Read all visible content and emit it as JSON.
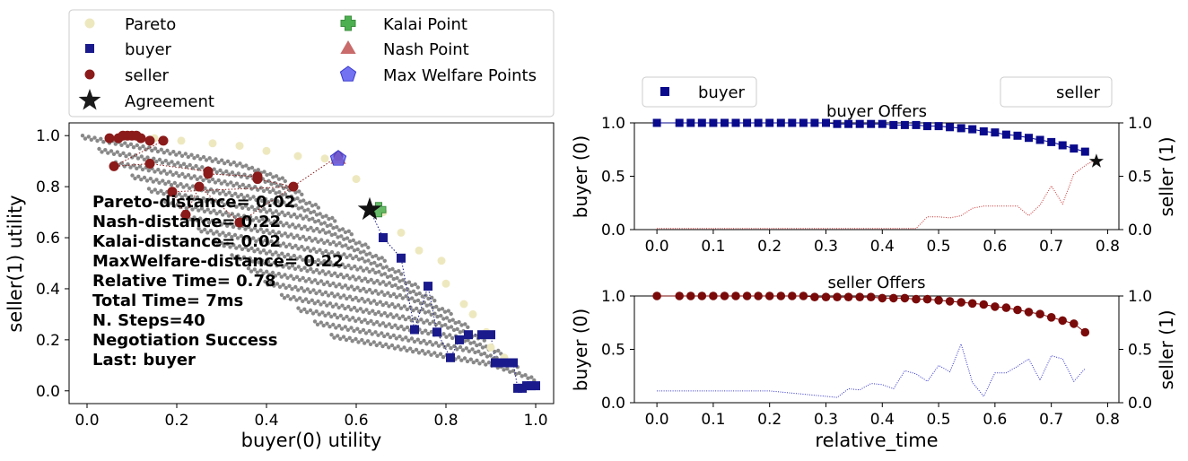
{
  "chart_data": [
    {
      "type": "scatter",
      "xlabel": "buyer(0) utility",
      "ylabel": "seller(1) utility",
      "xlim": [
        -0.04,
        1.04
      ],
      "ylim": [
        -0.05,
        1.05
      ],
      "xticks": [
        "0.0",
        "0.2",
        "0.4",
        "0.6",
        "0.8",
        "1.0"
      ],
      "yticks": [
        "0.0",
        "0.2",
        "0.4",
        "0.6",
        "0.8",
        "1.0"
      ],
      "legend_position": "above",
      "legend": [
        {
          "label": "Pareto",
          "marker": "circle",
          "color": "#eee8bf"
        },
        {
          "label": "buyer",
          "marker": "square",
          "color": "#1a1a8c"
        },
        {
          "label": "seller",
          "marker": "circle",
          "color": "#8b1a1a"
        },
        {
          "label": "Agreement",
          "marker": "star",
          "color": "#1a1a1a"
        },
        {
          "label": "Kalai Point",
          "marker": "plus",
          "color": "#4caf50"
        },
        {
          "label": "Nash Point",
          "marker": "triangle",
          "color": "#c96b6b"
        },
        {
          "label": "Max Welfare Points",
          "marker": "pentagon",
          "color": "#5a5af0"
        }
      ],
      "stats": [
        "Pareto-distance= 0.02",
        "Nash-distance= 0.22",
        "Kalai-distance= 0.02",
        "MaxWelfare-distance= 0.22",
        "Relative Time= 0.78",
        "Total Time= 7ms",
        "N. Steps=40",
        "Negotiation Success",
        "Last: buyer"
      ],
      "series": [
        {
          "name": "buyer",
          "color": "#1a1a8c",
          "points": [
            [
              0.66,
              0.6
            ],
            [
              0.7,
              0.52
            ],
            [
              0.73,
              0.24
            ],
            [
              0.76,
              0.41
            ],
            [
              0.78,
              0.23
            ],
            [
              0.81,
              0.13
            ],
            [
              0.83,
              0.2
            ],
            [
              0.85,
              0.22
            ],
            [
              0.88,
              0.22
            ],
            [
              0.9,
              0.22
            ],
            [
              0.91,
              0.11
            ],
            [
              0.93,
              0.11
            ],
            [
              0.95,
              0.11
            ],
            [
              0.96,
              0.01
            ],
            [
              0.97,
              0.01
            ],
            [
              0.98,
              0.02
            ],
            [
              0.99,
              0.02
            ],
            [
              1.0,
              0.02
            ]
          ]
        },
        {
          "name": "seller",
          "color": "#8b1a1a",
          "points": [
            [
              0.05,
              0.99
            ],
            [
              0.07,
              0.99
            ],
            [
              0.08,
              1.0
            ],
            [
              0.09,
              1.0
            ],
            [
              0.1,
              1.0
            ],
            [
              0.11,
              1.0
            ],
            [
              0.12,
              0.99
            ],
            [
              0.14,
              0.98
            ],
            [
              0.17,
              0.98
            ],
            [
              0.06,
              0.88
            ],
            [
              0.14,
              0.89
            ],
            [
              0.27,
              0.86
            ],
            [
              0.27,
              0.85
            ],
            [
              0.38,
              0.84
            ],
            [
              0.38,
              0.83
            ],
            [
              0.46,
              0.8
            ],
            [
              0.19,
              0.78
            ],
            [
              0.22,
              0.69
            ],
            [
              0.25,
              0.8
            ],
            [
              0.34,
              0.66
            ],
            [
              0.56,
              0.92
            ]
          ]
        },
        {
          "name": "Pareto",
          "color": "#eee8bf",
          "points": [
            [
              0.15,
              0.99
            ],
            [
              0.21,
              0.98
            ],
            [
              0.28,
              0.97
            ],
            [
              0.34,
              0.96
            ],
            [
              0.4,
              0.94
            ],
            [
              0.47,
              0.92
            ],
            [
              0.53,
              0.91
            ],
            [
              0.6,
              0.83
            ],
            [
              0.66,
              0.7
            ],
            [
              0.7,
              0.62
            ],
            [
              0.74,
              0.55
            ],
            [
              0.79,
              0.51
            ],
            [
              0.8,
              0.42
            ],
            [
              0.84,
              0.34
            ],
            [
              0.86,
              0.3
            ],
            [
              0.89,
              0.23
            ],
            [
              0.9,
              0.17
            ],
            [
              0.93,
              0.13
            ]
          ]
        }
      ],
      "agreement": [
        0.63,
        0.71
      ],
      "kalai_point": [
        0.65,
        0.71
      ],
      "nash_point": [
        0.56,
        0.91
      ],
      "max_welfare_point": [
        0.56,
        0.91
      ]
    },
    {
      "type": "line",
      "title": "buyer Offers",
      "xlabel": "",
      "ylabel": "buyer (0)",
      "ylabel_right": "seller (1)",
      "xlim": [
        -0.04,
        0.82
      ],
      "ylim": [
        0,
        1
      ],
      "xticks": [
        "0.0",
        "0.1",
        "0.2",
        "0.3",
        "0.4",
        "0.5",
        "0.6",
        "0.7",
        "0.8"
      ],
      "yticks": [
        "0.0",
        "0.5",
        "1.0"
      ],
      "yticks_right": [
        "0.0",
        "0.5",
        "1.0"
      ],
      "legend": [
        "buyer",
        "seller"
      ],
      "series": [
        {
          "name": "buyer",
          "color": "#0a0a8c",
          "marker": "square",
          "x": [
            0.0,
            0.04,
            0.06,
            0.08,
            0.1,
            0.12,
            0.14,
            0.16,
            0.18,
            0.2,
            0.22,
            0.24,
            0.26,
            0.28,
            0.3,
            0.32,
            0.34,
            0.36,
            0.38,
            0.4,
            0.42,
            0.44,
            0.46,
            0.48,
            0.5,
            0.52,
            0.54,
            0.56,
            0.58,
            0.6,
            0.62,
            0.64,
            0.66,
            0.68,
            0.7,
            0.72,
            0.74,
            0.76
          ],
          "y": [
            1.0,
            1.0,
            1.0,
            1.0,
            1.0,
            1.0,
            1.0,
            1.0,
            1.0,
            1.0,
            1.0,
            1.0,
            1.0,
            1.0,
            1.0,
            0.99,
            0.99,
            0.99,
            0.99,
            0.99,
            0.98,
            0.98,
            0.98,
            0.97,
            0.97,
            0.96,
            0.95,
            0.94,
            0.92,
            0.91,
            0.89,
            0.88,
            0.86,
            0.84,
            0.82,
            0.79,
            0.76,
            0.73
          ]
        },
        {
          "name": "seller",
          "color": "#cc3333",
          "marker": "none",
          "x": [
            0.0,
            0.46,
            0.48,
            0.5,
            0.52,
            0.54,
            0.56,
            0.58,
            0.6,
            0.62,
            0.64,
            0.66,
            0.68,
            0.7,
            0.72,
            0.74,
            0.76,
            0.78
          ],
          "y": [
            0.01,
            0.01,
            0.12,
            0.12,
            0.11,
            0.13,
            0.2,
            0.22,
            0.22,
            0.22,
            0.22,
            0.13,
            0.23,
            0.41,
            0.24,
            0.52,
            0.6,
            0.66
          ]
        }
      ],
      "agreement": [
        0.78,
        0.64
      ]
    },
    {
      "type": "line",
      "title": "seller Offers",
      "xlabel": "relative_time",
      "ylabel": "buyer (0)",
      "ylabel_right": "seller (1)",
      "xlim": [
        -0.04,
        0.82
      ],
      "ylim": [
        0,
        1
      ],
      "xticks": [
        "0.0",
        "0.1",
        "0.2",
        "0.3",
        "0.4",
        "0.5",
        "0.6",
        "0.7",
        "0.8"
      ],
      "yticks": [
        "0.0",
        "0.5",
        "1.0"
      ],
      "yticks_right": [
        "0.0",
        "0.5",
        "1.0"
      ],
      "series": [
        {
          "name": "seller",
          "color": "#7a0a0a",
          "marker": "circle",
          "x": [
            0.0,
            0.04,
            0.06,
            0.08,
            0.1,
            0.12,
            0.14,
            0.16,
            0.18,
            0.2,
            0.22,
            0.24,
            0.26,
            0.28,
            0.3,
            0.32,
            0.34,
            0.36,
            0.38,
            0.4,
            0.42,
            0.44,
            0.46,
            0.48,
            0.5,
            0.52,
            0.54,
            0.56,
            0.58,
            0.6,
            0.62,
            0.64,
            0.66,
            0.68,
            0.7,
            0.72,
            0.74,
            0.76
          ],
          "y": [
            1.0,
            1.0,
            1.0,
            1.0,
            1.0,
            1.0,
            1.0,
            1.0,
            1.0,
            1.0,
            1.0,
            1.0,
            1.0,
            0.99,
            0.99,
            0.99,
            0.99,
            0.99,
            0.99,
            0.98,
            0.98,
            0.98,
            0.97,
            0.97,
            0.96,
            0.95,
            0.94,
            0.93,
            0.92,
            0.9,
            0.89,
            0.87,
            0.85,
            0.83,
            0.8,
            0.77,
            0.74,
            0.66
          ]
        },
        {
          "name": "buyer",
          "color": "#3333cc",
          "marker": "none",
          "x": [
            0.0,
            0.2,
            0.24,
            0.28,
            0.3,
            0.32,
            0.34,
            0.36,
            0.38,
            0.4,
            0.42,
            0.44,
            0.46,
            0.48,
            0.5,
            0.52,
            0.54,
            0.56,
            0.58,
            0.6,
            0.62,
            0.64,
            0.66,
            0.68,
            0.7,
            0.72,
            0.74,
            0.76
          ],
          "y": [
            0.11,
            0.11,
            0.09,
            0.07,
            0.06,
            0.05,
            0.13,
            0.12,
            0.18,
            0.17,
            0.13,
            0.3,
            0.27,
            0.2,
            0.35,
            0.29,
            0.55,
            0.19,
            0.06,
            0.28,
            0.28,
            0.34,
            0.41,
            0.21,
            0.44,
            0.41,
            0.2,
            0.32
          ]
        }
      ]
    }
  ]
}
